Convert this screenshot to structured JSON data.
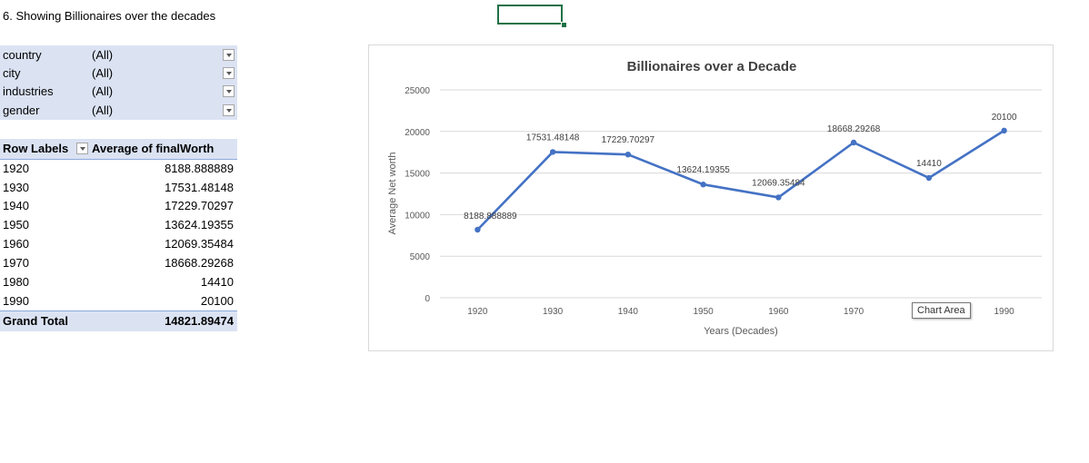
{
  "sheet": {
    "title": "6. Showing Billionaires over the decades"
  },
  "filters": [
    {
      "label": "country",
      "value": "(All)"
    },
    {
      "label": "city",
      "value": "(All)"
    },
    {
      "label": "industries",
      "value": "(All)"
    },
    {
      "label": "gender",
      "value": "(All)"
    }
  ],
  "pivot": {
    "row_labels_header": "Row Labels",
    "value_header": "Average of finalWorth",
    "rows": [
      {
        "label": "1920",
        "value": "8188.888889"
      },
      {
        "label": "1930",
        "value": "17531.48148"
      },
      {
        "label": "1940",
        "value": "17229.70297"
      },
      {
        "label": "1950",
        "value": "13624.19355"
      },
      {
        "label": "1960",
        "value": "12069.35484"
      },
      {
        "label": "1970",
        "value": "18668.29268"
      },
      {
        "label": "1980",
        "value": "14410"
      },
      {
        "label": "1990",
        "value": "20100"
      }
    ],
    "grand_total_label": "Grand Total",
    "grand_total_value": "14821.89474"
  },
  "chart_data": {
    "type": "line",
    "title": "Billionaires over a Decade",
    "xlabel": "Years (Decades)",
    "ylabel": "Average Net worth",
    "categories": [
      "1920",
      "1930",
      "1940",
      "1950",
      "1960",
      "1970",
      "1980",
      "1990"
    ],
    "values": [
      8188.888889,
      17531.48148,
      17229.70297,
      13624.19355,
      12069.35484,
      18668.29268,
      14410,
      20100
    ],
    "data_labels": [
      "8188.888889",
      "17531.48148",
      "17229.70297",
      "13624.19355",
      "12069.35484",
      "18668.29268",
      "14410",
      "20100"
    ],
    "yticks": [
      "0",
      "5000",
      "10000",
      "15000",
      "20000",
      "25000"
    ],
    "ylim": [
      0,
      25000
    ],
    "grid": true,
    "legend": "none",
    "line_color": "#4472c4"
  },
  "tooltip": {
    "text": "Chart Area"
  }
}
